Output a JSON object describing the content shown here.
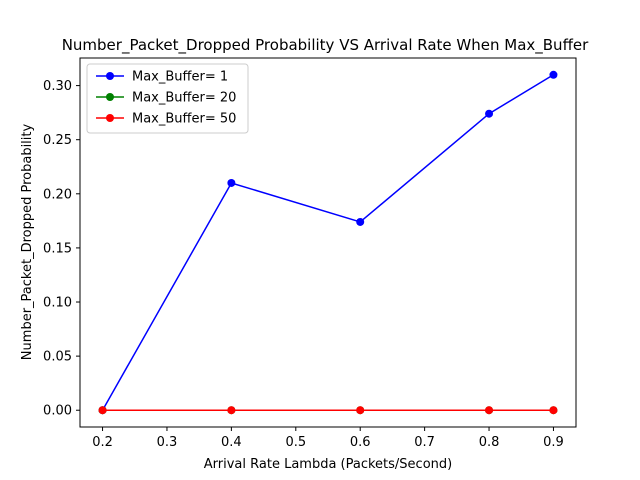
{
  "chart_data": {
    "type": "line",
    "title": "Number_Packet_Dropped Probability VS Arrival Rate When Max_Buffer",
    "xlabel": "Arrival Rate Lambda (Packets/Second)",
    "ylabel": "Number_Packet_Dropped Probability",
    "x": [
      0.2,
      0.4,
      0.6,
      0.8,
      0.9
    ],
    "xlim": [
      0.165,
      0.935
    ],
    "ylim": [
      -0.0155,
      0.3255
    ],
    "xticks": [
      "0.2",
      "0.3",
      "0.4",
      "0.5",
      "0.6",
      "0.7",
      "0.8",
      "0.9"
    ],
    "yticks": [
      "0.00",
      "0.05",
      "0.10",
      "0.15",
      "0.20",
      "0.25",
      "0.30"
    ],
    "grid": false,
    "legend_position": "top-left",
    "series": [
      {
        "name": "Max_Buffer= 1",
        "color": "#0000ff",
        "values": [
          0.0,
          0.21,
          0.174,
          0.274,
          0.31
        ]
      },
      {
        "name": "Max_Buffer= 20",
        "color": "#008000",
        "values": [
          0.0,
          0.0,
          0.0,
          0.0,
          0.0
        ]
      },
      {
        "name": "Max_Buffer= 50",
        "color": "#ff0000",
        "values": [
          0.0,
          0.0,
          0.0,
          0.0,
          0.0
        ]
      }
    ]
  }
}
